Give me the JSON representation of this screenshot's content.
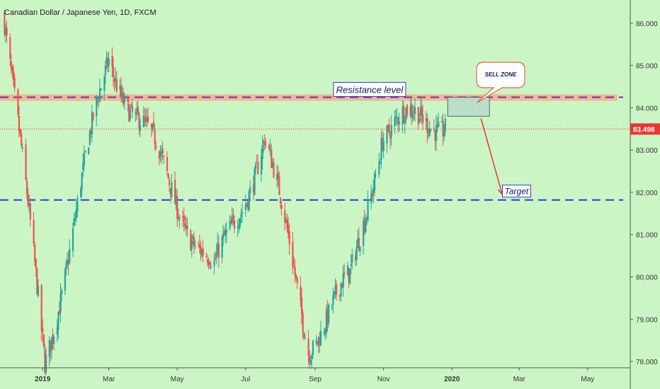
{
  "chart_data": {
    "type": "candlestick",
    "title": "Canadian Dollar / Japanese Yen, 1D, FXCM",
    "ylim": [
      77.85,
      86.55
    ],
    "y_ticks": [
      "86.000",
      "85.000",
      "84.000",
      "83.000",
      "82.000",
      "81.000",
      "80.000",
      "79.000",
      "78.000"
    ],
    "y_tick_values": [
      86,
      85,
      84,
      83,
      82,
      81,
      80,
      79,
      78
    ],
    "x_ticks": [
      "2019",
      "Mar",
      "May",
      "Jul",
      "Sep",
      "Nov",
      "2020",
      "Mar",
      "May"
    ],
    "x_tick_dates": [
      "2019-01-01",
      "2019-03-01",
      "2019-05-01",
      "2019-07-01",
      "2019-09-01",
      "2019-11-01",
      "2020-01-01",
      "2020-03-01",
      "2020-05-01"
    ],
    "x_range": [
      "2018-11-24",
      "2020-06-08"
    ],
    "current_price": "83.498",
    "current_price_value": 83.498,
    "resistance_level": 84.25,
    "target_level": 81.82,
    "key_prices": [
      {
        "date": "2018-11-28",
        "price": 86.2
      },
      {
        "date": "2019-01-03",
        "price": 78.0
      },
      {
        "date": "2019-03-01",
        "price": 85.2
      },
      {
        "date": "2019-06-03",
        "price": 80.0
      },
      {
        "date": "2019-07-18",
        "price": 83.3
      },
      {
        "date": "2019-08-26",
        "price": 78.5
      },
      {
        "date": "2019-10-02",
        "price": 79.8
      },
      {
        "date": "2019-10-31",
        "price": 83.5
      },
      {
        "date": "2019-12-26",
        "price": 83.8
      }
    ],
    "annotations": {
      "resistance_label": "Resistance level",
      "sell_zone_label": "SELL ZONE",
      "target_label": "Target"
    },
    "colors": {
      "background": "#ccf5c6",
      "up": "#26a69a",
      "down": "#ef5350",
      "resistance_band": "#f3a98e",
      "resistance_line": "#7b2f8a",
      "target_line": "#2b3fd6",
      "price_line": "#e53935",
      "sell_zone_fill": "#b9dccb",
      "arrow": "#e53935"
    }
  }
}
